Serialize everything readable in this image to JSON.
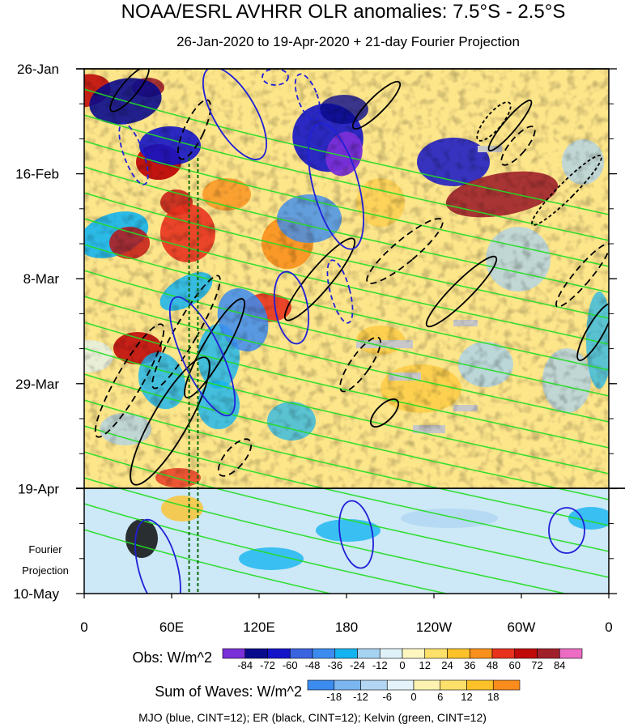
{
  "chart_data": {
    "type": "heatmap",
    "title": "NOAA/ESRL AVHRR OLR anomalies: 7.5°S - 2.5°S",
    "subtitle": "26-Jan-2020 to 19-Apr-2020 + 21-day Fourier Projection",
    "x_ticks": [
      "0",
      "60E",
      "120E",
      "180",
      "120W",
      "60W",
      "0"
    ],
    "x_range_deg": [
      0,
      360
    ],
    "y_ticks": [
      "26-Jan",
      "16-Feb",
      "8-Mar",
      "29-Mar",
      "19-Apr",
      "10-May"
    ],
    "y_range_dates": [
      "2020-01-26",
      "2020-05-10"
    ],
    "projection_start": "19-Apr",
    "projection_label": [
      "Fourier",
      "Projection"
    ],
    "obs_legend": {
      "label": "Obs: W/m^2",
      "levels": [
        "-84",
        "-72",
        "-60",
        "-48",
        "-36",
        "-24",
        "-12",
        "0",
        "12",
        "24",
        "36",
        "48",
        "60",
        "72",
        "84"
      ],
      "colors": [
        "#7a2fd8",
        "#0a0a8c",
        "#1414c8",
        "#3a64e0",
        "#3c8cf0",
        "#14b4f0",
        "#a6d2f2",
        "#dff2f8",
        "#fdf6c0",
        "#fde06a",
        "#fdc22a",
        "#f9901c",
        "#e8321e",
        "#c00a0a",
        "#a0202a",
        "#ec6cc4"
      ]
    },
    "waves_legend": {
      "label": "Sum of Waves: W/m^2",
      "levels": [
        "-18",
        "-12",
        "-6",
        "0",
        "6",
        "12",
        "18"
      ],
      "colors": [
        "#3c8cf0",
        "#7cb6f0",
        "#b2d6f4",
        "#e4f2fa",
        "#fdf2b0",
        "#fde06a",
        "#fdc22a",
        "#f98c1c"
      ]
    },
    "footnote": "MJO (blue, CINT=12); ER (black, CINT=12); Kelvin (green, CINT=12)",
    "series": [
      {
        "wave": "MJO",
        "color": "#2020d8"
      },
      {
        "wave": "ER",
        "color": "#000000"
      },
      {
        "wave": "Kelvin",
        "color": "#22dd22"
      }
    ],
    "reference_lines_lon": [
      72,
      78
    ],
    "reference_line_color": "#0a6a0a"
  }
}
